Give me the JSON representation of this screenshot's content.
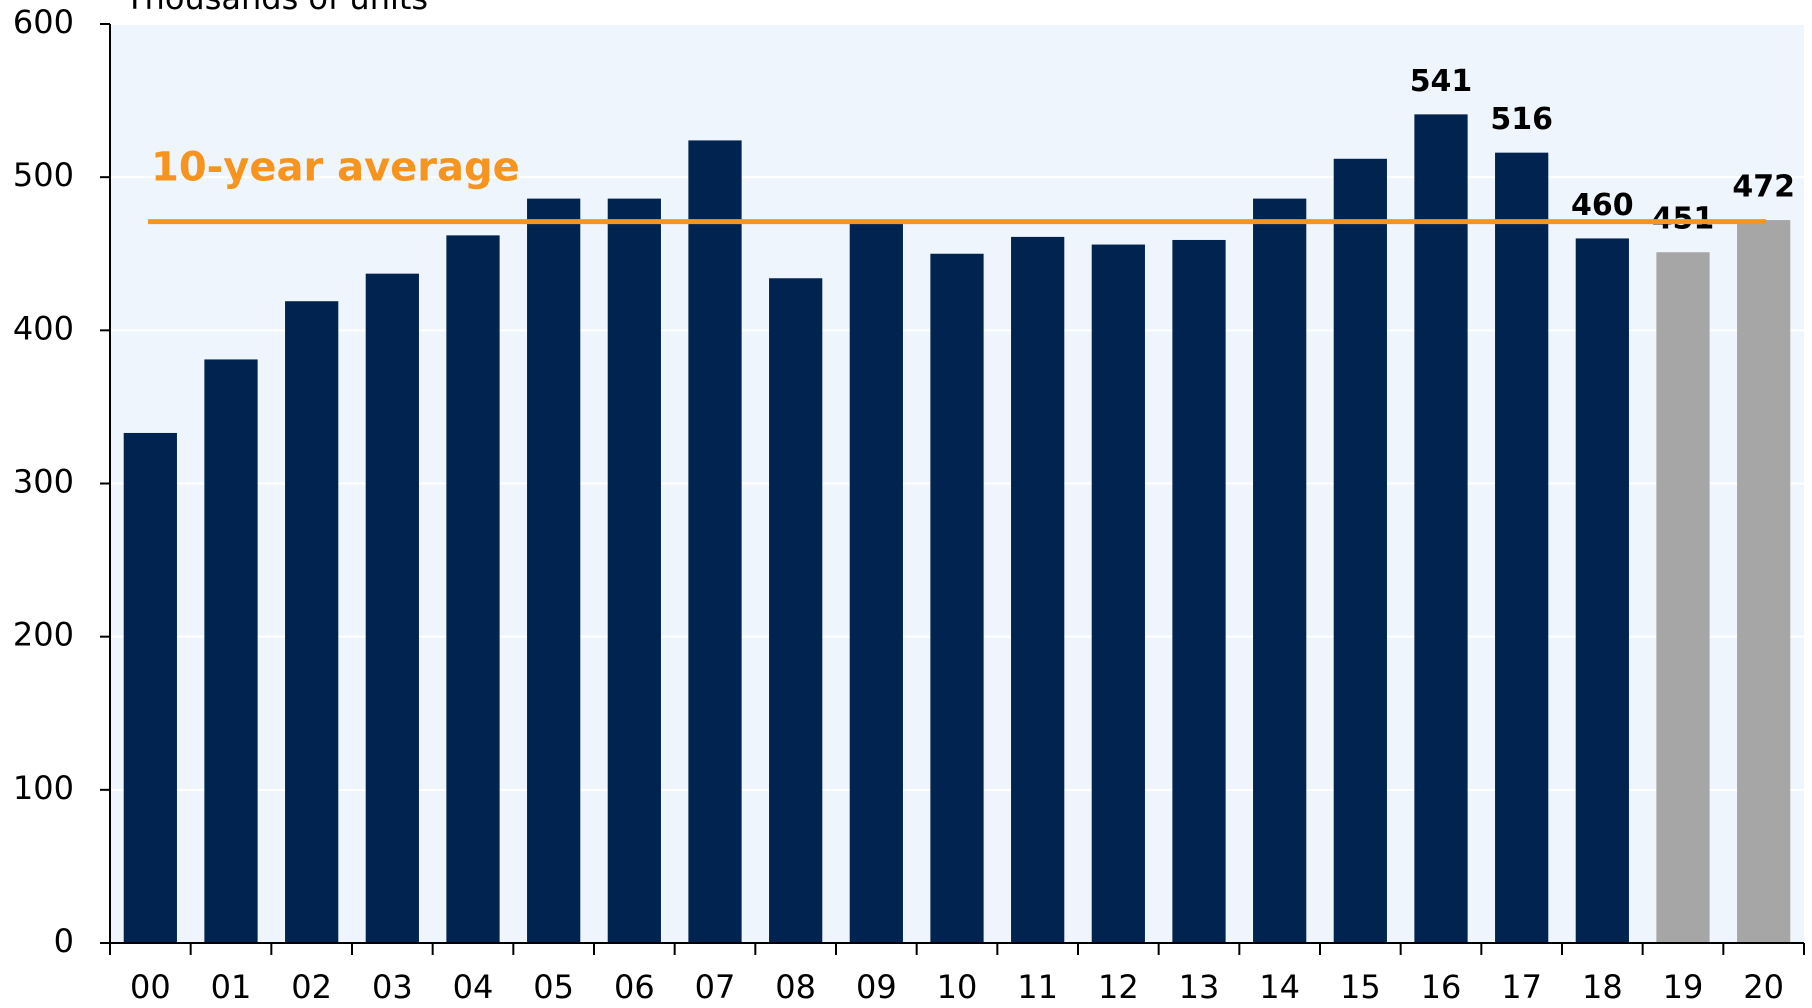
{
  "chart_data": {
    "type": "bar",
    "y_label": "Thousands of units",
    "categories": [
      "00",
      "01",
      "02",
      "03",
      "04",
      "05",
      "06",
      "07",
      "08",
      "09",
      "10",
      "11",
      "12",
      "13",
      "14",
      "15",
      "16",
      "17",
      "18",
      "19",
      "20"
    ],
    "values": [
      333,
      381,
      419,
      437,
      462,
      486,
      486,
      524,
      434,
      470,
      450,
      461,
      456,
      459,
      486,
      512,
      541,
      516,
      460,
      451,
      472
    ],
    "colors": [
      "#012350",
      "#012350",
      "#012350",
      "#012350",
      "#012350",
      "#012350",
      "#012350",
      "#012350",
      "#012350",
      "#012350",
      "#012350",
      "#012350",
      "#012350",
      "#012350",
      "#012350",
      "#012350",
      "#012350",
      "#012350",
      "#012350",
      "#a6a6a6",
      "#a6a6a6"
    ],
    "labeled": [
      false,
      false,
      false,
      false,
      false,
      false,
      false,
      false,
      false,
      false,
      false,
      false,
      false,
      false,
      false,
      false,
      true,
      true,
      true,
      true,
      true
    ],
    "reference_line": {
      "value": 471,
      "label": "10-year average",
      "color": "#f7941d"
    },
    "ylim": [
      0,
      600
    ],
    "yticks": [
      0,
      100,
      200,
      300,
      400,
      500,
      600
    ],
    "grid": true
  }
}
